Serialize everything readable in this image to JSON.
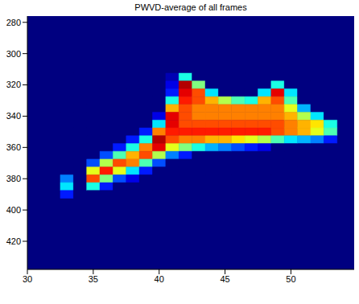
{
  "chart_data": {
    "type": "heatmap",
    "title": "PWVD-average of all frames",
    "x": [
      33,
      34,
      35,
      36,
      37,
      38,
      39,
      40,
      41,
      42,
      43,
      44,
      45,
      46,
      47,
      48,
      49,
      50,
      51,
      52,
      53
    ],
    "y": [
      315,
      320,
      325,
      330,
      335,
      340,
      345,
      350,
      355,
      360,
      365,
      370,
      375,
      380,
      385,
      390
    ],
    "cells": [
      [
        0,
        0,
        0,
        0,
        0,
        0,
        0,
        0,
        0,
        0,
        0,
        0,
        0,
        0.25,
        0.35,
        0.15
      ],
      [
        0,
        0,
        0,
        0,
        0,
        0,
        0,
        0,
        0,
        0,
        0,
        0,
        0,
        0,
        0,
        0
      ],
      [
        0,
        0,
        0,
        0,
        0,
        0,
        0,
        0,
        0,
        0,
        0,
        0.2,
        0.6,
        0.8,
        0.4,
        0
      ],
      [
        0,
        0,
        0,
        0,
        0,
        0,
        0,
        0,
        0,
        0,
        0.2,
        0.55,
        0.85,
        0.5,
        0.15,
        0
      ],
      [
        0,
        0,
        0,
        0,
        0,
        0,
        0,
        0,
        0,
        0.15,
        0.45,
        0.8,
        0.6,
        0.2,
        0,
        0
      ],
      [
        0,
        0,
        0,
        0,
        0,
        0,
        0,
        0,
        0.15,
        0.4,
        0.7,
        0.75,
        0.35,
        0.1,
        0,
        0
      ],
      [
        0,
        0,
        0,
        0,
        0,
        0,
        0,
        0.15,
        0.4,
        0.75,
        0.8,
        0.45,
        0.15,
        0,
        0,
        0
      ],
      [
        0,
        0,
        0,
        0,
        0,
        0.1,
        0.35,
        0.75,
        0.95,
        0.9,
        0.55,
        0.2,
        0,
        0,
        0,
        0
      ],
      [
        0.05,
        0.1,
        0.15,
        0.4,
        0.7,
        0.9,
        0.9,
        0.85,
        0.8,
        0.6,
        0.25,
        0,
        0,
        0,
        0,
        0
      ],
      [
        0.4,
        0.95,
        0.9,
        0.85,
        0.8,
        0.8,
        0.8,
        0.85,
        0.75,
        0.5,
        0.15,
        0,
        0,
        0,
        0,
        0
      ],
      [
        0,
        0.5,
        0.8,
        0.8,
        0.75,
        0.75,
        0.8,
        0.85,
        0.75,
        0.4,
        0,
        0,
        0,
        0,
        0,
        0
      ],
      [
        0,
        0,
        0.35,
        0.7,
        0.75,
        0.75,
        0.8,
        0.85,
        0.7,
        0.3,
        0,
        0,
        0,
        0,
        0,
        0
      ],
      [
        0,
        0,
        0,
        0.55,
        0.75,
        0.75,
        0.8,
        0.85,
        0.7,
        0.25,
        0,
        0,
        0,
        0,
        0,
        0
      ],
      [
        0,
        0,
        0,
        0.45,
        0.75,
        0.75,
        0.8,
        0.85,
        0.65,
        0.2,
        0,
        0,
        0,
        0,
        0,
        0
      ],
      [
        0,
        0,
        0,
        0.4,
        0.75,
        0.75,
        0.8,
        0.85,
        0.6,
        0.15,
        0,
        0,
        0,
        0,
        0,
        0
      ],
      [
        0,
        0,
        0.35,
        0.7,
        0.75,
        0.75,
        0.8,
        0.85,
        0.55,
        0.1,
        0,
        0,
        0,
        0,
        0,
        0
      ],
      [
        0,
        0.4,
        0.9,
        0.8,
        0.75,
        0.75,
        0.8,
        0.8,
        0.45,
        0,
        0,
        0,
        0,
        0,
        0,
        0
      ],
      [
        0,
        0,
        0.35,
        0.45,
        0.6,
        0.7,
        0.75,
        0.75,
        0.35,
        0,
        0,
        0,
        0,
        0,
        0,
        0
      ],
      [
        0,
        0,
        0,
        0,
        0.3,
        0.55,
        0.7,
        0.7,
        0.3,
        0,
        0,
        0,
        0,
        0,
        0,
        0
      ],
      [
        0,
        0,
        0,
        0,
        0,
        0.35,
        0.65,
        0.6,
        0.25,
        0,
        0,
        0,
        0,
        0,
        0,
        0
      ],
      [
        0,
        0,
        0,
        0,
        0,
        0,
        0.4,
        0.45,
        0.15,
        0,
        0,
        0,
        0,
        0,
        0,
        0
      ]
    ],
    "color_range": [
      0,
      1
    ],
    "xlim": [
      30,
      54.8
    ],
    "xticks": [
      30,
      35,
      40,
      45,
      50
    ],
    "ylim": [
      276,
      438
    ],
    "yticks": [
      280,
      300,
      320,
      340,
      360,
      380,
      400,
      420
    ]
  }
}
